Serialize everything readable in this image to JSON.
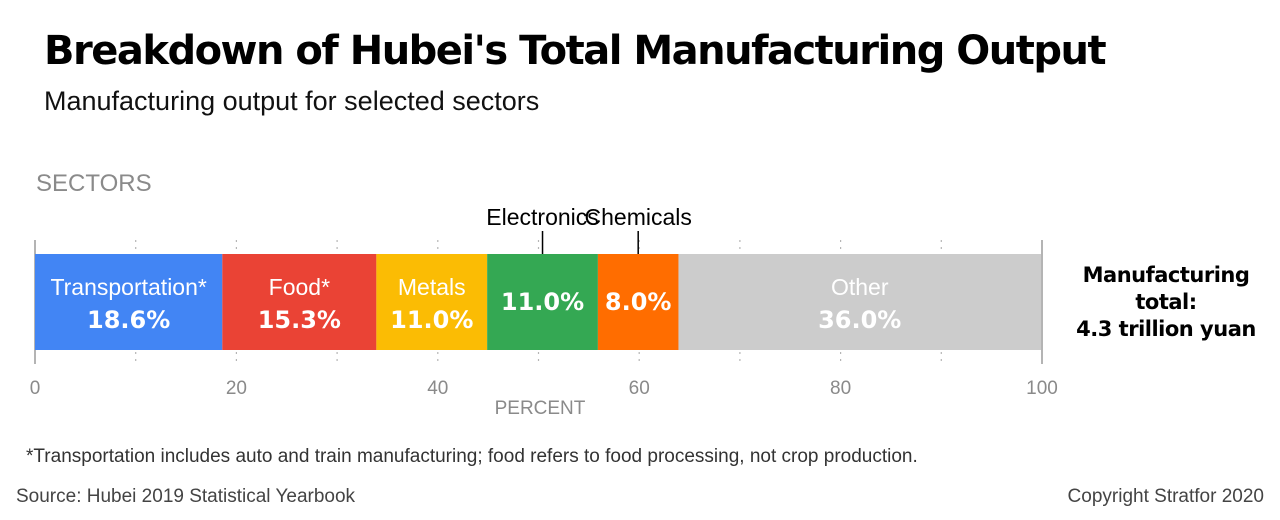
{
  "header": {
    "title": "Breakdown of Hubei's Total Manufacturing Output",
    "subtitle": "Manufacturing output for selected sectors"
  },
  "total": {
    "line1": "Manufacturing",
    "line2": "total:",
    "line3": "4.3 trillion yuan"
  },
  "footer": {
    "footnote": "*Transportation includes auto and train manufacturing; food refers to food processing, not crop production.",
    "source": "Source: Hubei 2019 Statistical Yearbook",
    "copyright": "Copyright Stratfor 2020"
  },
  "chart_data": {
    "type": "bar",
    "orientation": "horizontal-stacked",
    "ylabel": "SECTORS",
    "xlabel": "PERCENT",
    "xlim": [
      0,
      100
    ],
    "ticks": [
      0,
      20,
      40,
      60,
      80,
      100
    ],
    "grid": true,
    "segments": [
      {
        "name": "Transportation*",
        "value": 18.6,
        "label": "18.6%",
        "color": "#4285f4",
        "text_color": "#ffffff",
        "name_position": "inside"
      },
      {
        "name": "Food*",
        "value": 15.3,
        "label": "15.3%",
        "color": "#ea4335",
        "text_color": "#ffffff",
        "name_position": "inside"
      },
      {
        "name": "Metals",
        "value": 11.0,
        "label": "11.0%",
        "color": "#fbbc04",
        "text_color": "#ffffff",
        "name_position": "inside"
      },
      {
        "name": "Electronics",
        "value": 11.0,
        "label": "11.0%",
        "color": "#34a853",
        "text_color": "#ffffff",
        "name_position": "above"
      },
      {
        "name": "Chemicals",
        "value": 8.0,
        "label": "8.0%",
        "color": "#ff6d00",
        "text_color": "#ffffff",
        "name_position": "above"
      },
      {
        "name": "Other",
        "value": 36.0,
        "label": "36.0%",
        "color": "#cccccc",
        "text_color": "#ffffff",
        "name_position": "inside"
      }
    ]
  }
}
